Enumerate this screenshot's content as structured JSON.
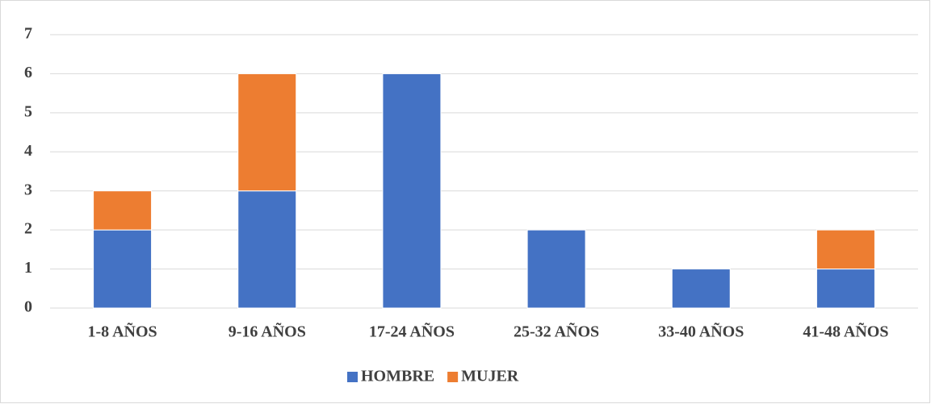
{
  "chart_data": {
    "type": "stacked_bar",
    "categories": [
      "1-8 AÑOS",
      "9-16 AÑOS",
      "17-24 AÑOS",
      "25-32 AÑOS",
      "33-40 AÑOS",
      "41-48 AÑOS"
    ],
    "series": [
      {
        "name": "HOMBRE",
        "color": "#4472c4",
        "values": [
          2,
          3,
          6,
          2,
          1,
          1
        ]
      },
      {
        "name": "MUJER",
        "color": "#ed7d31",
        "values": [
          1,
          3,
          0,
          0,
          0,
          1
        ]
      }
    ],
    "ylim": [
      0,
      7
    ],
    "yticks": [
      0,
      1,
      2,
      3,
      4,
      5,
      6,
      7
    ],
    "grid": true,
    "legend": "bottom"
  }
}
